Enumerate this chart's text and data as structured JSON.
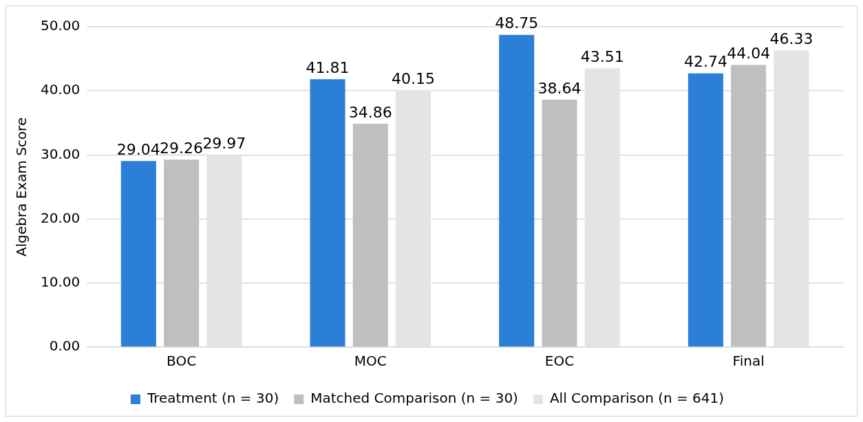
{
  "chart_data": {
    "type": "bar",
    "ylabel": "Algebra Exam Score",
    "categories": [
      "BOC",
      "MOC",
      "EOC",
      "Final"
    ],
    "series": [
      {
        "name": "Treatment (n = 30)",
        "color": "#2b7fd6",
        "values": [
          29.04,
          41.81,
          48.75,
          42.74
        ]
      },
      {
        "name": "Matched Comparison (n = 30)",
        "color": "#bfbfbf",
        "values": [
          29.26,
          34.86,
          38.64,
          44.04
        ]
      },
      {
        "name": "All Comparison (n = 641)",
        "color": "#e4e4e4",
        "values": [
          29.97,
          40.15,
          43.51,
          46.33
        ]
      }
    ],
    "ylim": [
      0,
      50
    ],
    "yticks": [
      {
        "value": 0,
        "label": "0.00"
      },
      {
        "value": 10,
        "label": "10.00"
      },
      {
        "value": 20,
        "label": "20.00"
      },
      {
        "value": 30,
        "label": "30.00"
      },
      {
        "value": 40,
        "label": "40.00"
      },
      {
        "value": 50,
        "label": "50.00"
      }
    ],
    "grid": "y",
    "legend": "bottom",
    "data_labels": true
  }
}
